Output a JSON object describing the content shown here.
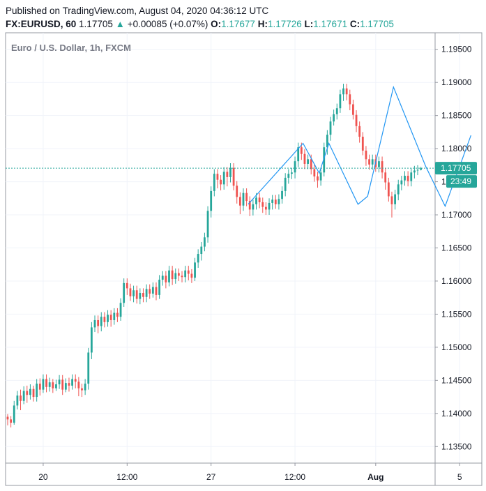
{
  "header": {
    "published": "Published on TradingView.com, August 04, 2020 04:36:12 UTC",
    "symbol": "FX:EURUSD, 60",
    "last": "1.17705",
    "change": "+0.00085 (+0.07%)",
    "open_label": "O:",
    "open": "1.17677",
    "high_label": "H:",
    "high": "1.17726",
    "low_label": "L:",
    "low": "1.17671",
    "close_label": "C:",
    "close": "1.17705"
  },
  "colors": {
    "up": "#26a69a",
    "down": "#ef5350",
    "pattern_line": "#2196f3",
    "price_line": "#26a69a"
  },
  "chart_data": {
    "type": "candlestick",
    "title": "Euro / U.S. Dollar, 1h, FXCM",
    "ylim": [
      1.1325,
      1.1975
    ],
    "y_ticks": [
      "1.19500",
      "1.19000",
      "1.18500",
      "1.18000",
      "1.17500",
      "1.17000",
      "1.16500",
      "1.16000",
      "1.15500",
      "1.15000",
      "1.14500",
      "1.14000",
      "1.13500"
    ],
    "x_ticks": [
      "20",
      "12:00",
      "27",
      "12:00",
      "Aug",
      "5"
    ],
    "x_tick_index": [
      11,
      37,
      63,
      89,
      114,
      140
    ],
    "price_label": "1.17705",
    "countdown_label": "23:49",
    "current_price": 1.17705,
    "grid": true,
    "closes": [
      1.1391,
      1.1386,
      1.1412,
      1.1427,
      1.1419,
      1.1434,
      1.1428,
      1.1437,
      1.1425,
      1.1445,
      1.1436,
      1.1452,
      1.144,
      1.1447,
      1.1438,
      1.1444,
      1.1451,
      1.1436,
      1.1446,
      1.1442,
      1.1452,
      1.1448,
      1.1438,
      1.1435,
      1.1445,
      1.1492,
      1.153,
      1.1541,
      1.1532,
      1.1546,
      1.1538,
      1.1549,
      1.1541,
      1.1552,
      1.1546,
      1.1567,
      1.1597,
      1.1589,
      1.1577,
      1.1586,
      1.1573,
      1.1582,
      1.1576,
      1.1588,
      1.1581,
      1.1591,
      1.1579,
      1.1602,
      1.1608,
      1.1598,
      1.1616,
      1.1603,
      1.1612,
      1.1608,
      1.1606,
      1.1616,
      1.1611,
      1.1605,
      1.1628,
      1.1641,
      1.1652,
      1.1666,
      1.1706,
      1.1736,
      1.1762,
      1.1753,
      1.1746,
      1.1765,
      1.1757,
      1.1771,
      1.1744,
      1.1727,
      1.1714,
      1.1733,
      1.1721,
      1.1708,
      1.1716,
      1.1726,
      1.1719,
      1.1712,
      1.1708,
      1.1718,
      1.1723,
      1.1716,
      1.1724,
      1.1736,
      1.1756,
      1.1762,
      1.1764,
      1.1781,
      1.1802,
      1.1792,
      1.1777,
      1.1784,
      1.1769,
      1.1758,
      1.1752,
      1.1764,
      1.1802,
      1.1821,
      1.1841,
      1.1852,
      1.1861,
      1.1882,
      1.1891,
      1.1882,
      1.1867,
      1.1851,
      1.1834,
      1.1818,
      1.1797,
      1.1784,
      1.1776,
      1.1784,
      1.1772,
      1.1781,
      1.1764,
      1.1749,
      1.1728,
      1.1716,
      1.1731,
      1.1746,
      1.1752,
      1.1759,
      1.1751,
      1.1764,
      1.1767,
      1.1768,
      1.17705
    ],
    "lows": [
      1.1382,
      1.1379,
      1.1383,
      1.1406,
      1.1405,
      1.1414,
      1.1416,
      1.1421,
      1.1418,
      1.1418,
      1.1427,
      1.1431,
      1.1432,
      1.1433,
      1.1431,
      1.1434,
      1.1437,
      1.1428,
      1.1432,
      1.1433,
      1.1436,
      1.1438,
      1.1426,
      1.1425,
      1.1428,
      1.1436,
      1.1482,
      1.1523,
      1.1521,
      1.1524,
      1.153,
      1.1531,
      1.1531,
      1.1534,
      1.1538,
      1.154,
      1.1561,
      1.1579,
      1.157,
      1.1568,
      1.1566,
      1.1565,
      1.1568,
      1.1568,
      1.1573,
      1.1575,
      1.1571,
      1.1573,
      1.1593,
      1.1589,
      1.1592,
      1.1594,
      1.1596,
      1.16,
      1.1598,
      1.1598,
      1.1601,
      1.1597,
      1.16,
      1.162,
      1.1631,
      1.1645,
      1.1658,
      1.1696,
      1.1728,
      1.174,
      1.1737,
      1.1738,
      1.1743,
      1.1749,
      1.1737,
      1.1717,
      1.1701,
      1.1706,
      1.1713,
      1.1698,
      1.1699,
      1.1708,
      1.171,
      1.1703,
      1.17,
      1.17,
      1.1708,
      1.1709,
      1.1708,
      1.1717,
      1.1728,
      1.1747,
      1.1754,
      1.1755,
      1.1772,
      1.1783,
      1.1769,
      1.1769,
      1.1761,
      1.175,
      1.1741,
      1.1744,
      1.1758,
      1.1791,
      1.1812,
      1.1835,
      1.1844,
      1.1854,
      1.1872,
      1.1873,
      1.1858,
      1.1844,
      1.1825,
      1.1809,
      1.179,
      1.1774,
      1.1768,
      1.1768,
      1.1765,
      1.1764,
      1.1755,
      1.1738,
      1.172,
      1.1696,
      1.1708,
      1.1722,
      1.1737,
      1.1744,
      1.1743,
      1.1743,
      1.1755,
      1.176,
      1.17671
    ],
    "highs": [
      1.1399,
      1.1396,
      1.1419,
      1.1434,
      1.1436,
      1.1441,
      1.1442,
      1.1444,
      1.1442,
      1.1452,
      1.1453,
      1.1459,
      1.1459,
      1.1454,
      1.1452,
      1.1451,
      1.1458,
      1.1458,
      1.1453,
      1.1454,
      1.1459,
      1.1459,
      1.1455,
      1.1445,
      1.1452,
      1.1499,
      1.1538,
      1.1548,
      1.1548,
      1.1553,
      1.1553,
      1.1556,
      1.1556,
      1.1559,
      1.1559,
      1.1574,
      1.1604,
      1.1604,
      1.1596,
      1.1593,
      1.1593,
      1.1589,
      1.1589,
      1.1595,
      1.1595,
      1.1598,
      1.1598,
      1.1609,
      1.1615,
      1.1615,
      1.1623,
      1.1623,
      1.1619,
      1.1619,
      1.1615,
      1.1623,
      1.1623,
      1.1618,
      1.1635,
      1.1648,
      1.1659,
      1.1673,
      1.1713,
      1.1743,
      1.1769,
      1.1769,
      1.176,
      1.1772,
      1.1772,
      1.1778,
      1.1778,
      1.1751,
      1.1734,
      1.174,
      1.174,
      1.1728,
      1.1723,
      1.1733,
      1.1733,
      1.1726,
      1.1719,
      1.1725,
      1.173,
      1.173,
      1.1731,
      1.1743,
      1.1763,
      1.1769,
      1.1771,
      1.1788,
      1.1809,
      1.1809,
      1.1799,
      1.1791,
      1.1791,
      1.1776,
      1.1765,
      1.1771,
      1.1809,
      1.1828,
      1.1848,
      1.1859,
      1.1868,
      1.1889,
      1.1898,
      1.1898,
      1.1889,
      1.1874,
      1.1858,
      1.1841,
      1.1825,
      1.1804,
      1.1791,
      1.1791,
      1.1791,
      1.1788,
      1.1788,
      1.1771,
      1.1756,
      1.1735,
      1.1738,
      1.1753,
      1.1759,
      1.1766,
      1.1766,
      1.1771,
      1.1774,
      1.1775,
      1.17726
    ],
    "pattern_line": [
      [
        74.5,
        1.1716
      ],
      [
        91.5,
        1.1808
      ],
      [
        96.5,
        1.1763
      ],
      [
        99.5,
        1.1808
      ],
      [
        108.5,
        1.1716
      ],
      [
        111.5,
        1.1728
      ],
      [
        119.5,
        1.1893
      ],
      [
        129.5,
        1.1773
      ],
      [
        135.5,
        1.1713
      ],
      [
        143.5,
        1.182
      ]
    ]
  }
}
